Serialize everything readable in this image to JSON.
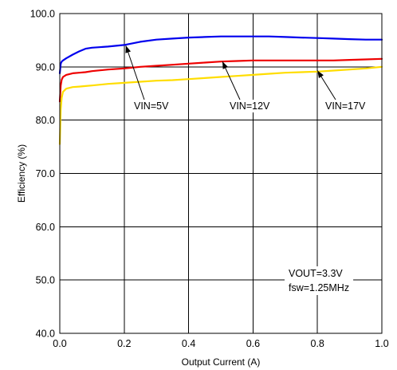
{
  "chart_data": {
    "type": "line",
    "title": "",
    "xlabel": "Output Current (A)",
    "ylabel": "Efficiency (%)",
    "xlim": [
      0.0,
      1.0
    ],
    "ylim": [
      40.0,
      100.0
    ],
    "x_ticks": [
      0.0,
      0.2,
      0.4,
      0.6,
      0.8,
      1.0
    ],
    "x_tick_labels": [
      "0.0",
      "0.2",
      "0.4",
      "0.6",
      "0.8",
      "1.0"
    ],
    "y_ticks": [
      40,
      50,
      60,
      70,
      80,
      90,
      100
    ],
    "y_tick_labels": [
      "40.0",
      "50.0",
      "60.0",
      "70.0",
      "80.0",
      "90.0",
      "100.0"
    ],
    "grid": true,
    "series": [
      {
        "name": "VIN=5V",
        "color": "#0000ee",
        "x": [
          0.0,
          0.003,
          0.006,
          0.01,
          0.02,
          0.04,
          0.06,
          0.08,
          0.1,
          0.15,
          0.2,
          0.25,
          0.3,
          0.35,
          0.4,
          0.45,
          0.5,
          0.55,
          0.6,
          0.65,
          0.7,
          0.75,
          0.8,
          0.85,
          0.9,
          0.95,
          1.0
        ],
        "y": [
          88.8,
          90.6,
          91.0,
          91.2,
          91.6,
          92.3,
          92.9,
          93.4,
          93.6,
          93.8,
          94.1,
          94.7,
          95.1,
          95.3,
          95.5,
          95.6,
          95.7,
          95.7,
          95.7,
          95.7,
          95.6,
          95.5,
          95.4,
          95.3,
          95.2,
          95.1,
          95.1
        ]
      },
      {
        "name": "VIN=12V",
        "color": "#ee0000",
        "x": [
          0.0,
          0.003,
          0.006,
          0.01,
          0.02,
          0.04,
          0.06,
          0.08,
          0.1,
          0.15,
          0.2,
          0.25,
          0.3,
          0.35,
          0.4,
          0.45,
          0.5,
          0.55,
          0.6,
          0.65,
          0.7,
          0.75,
          0.8,
          0.85,
          0.9,
          0.95,
          1.0
        ],
        "y": [
          83.5,
          86.5,
          87.6,
          88.1,
          88.5,
          88.8,
          88.9,
          89.0,
          89.2,
          89.5,
          89.7,
          90.0,
          90.2,
          90.4,
          90.6,
          90.8,
          91.0,
          91.1,
          91.2,
          91.2,
          91.2,
          91.2,
          91.2,
          91.2,
          91.3,
          91.4,
          91.5
        ]
      },
      {
        "name": "VIN=17V",
        "color": "#ffdd00",
        "x": [
          0.0,
          0.003,
          0.006,
          0.01,
          0.02,
          0.04,
          0.06,
          0.08,
          0.1,
          0.15,
          0.2,
          0.25,
          0.3,
          0.35,
          0.4,
          0.45,
          0.5,
          0.55,
          0.6,
          0.65,
          0.7,
          0.75,
          0.8,
          0.85,
          0.9,
          0.95,
          1.0
        ],
        "y": [
          75.5,
          82.0,
          84.2,
          85.3,
          85.9,
          86.2,
          86.3,
          86.4,
          86.5,
          86.8,
          87.0,
          87.2,
          87.4,
          87.5,
          87.7,
          87.9,
          88.1,
          88.3,
          88.5,
          88.7,
          88.9,
          89.0,
          89.1,
          89.3,
          89.5,
          89.7,
          90.0
        ]
      }
    ],
    "annotations": [
      {
        "text": "VIN=5V",
        "series": 0,
        "point_to": [
          0.205,
          94.0
        ]
      },
      {
        "text": "VIN=12V",
        "series": 1,
        "point_to": [
          0.505,
          91.0
        ]
      },
      {
        "text": "VIN=17V",
        "series": 2,
        "point_to": [
          0.8,
          89.3
        ]
      }
    ],
    "condition_lines": [
      "VOUT=3.3V",
      "fsw=1.25MHz"
    ]
  }
}
